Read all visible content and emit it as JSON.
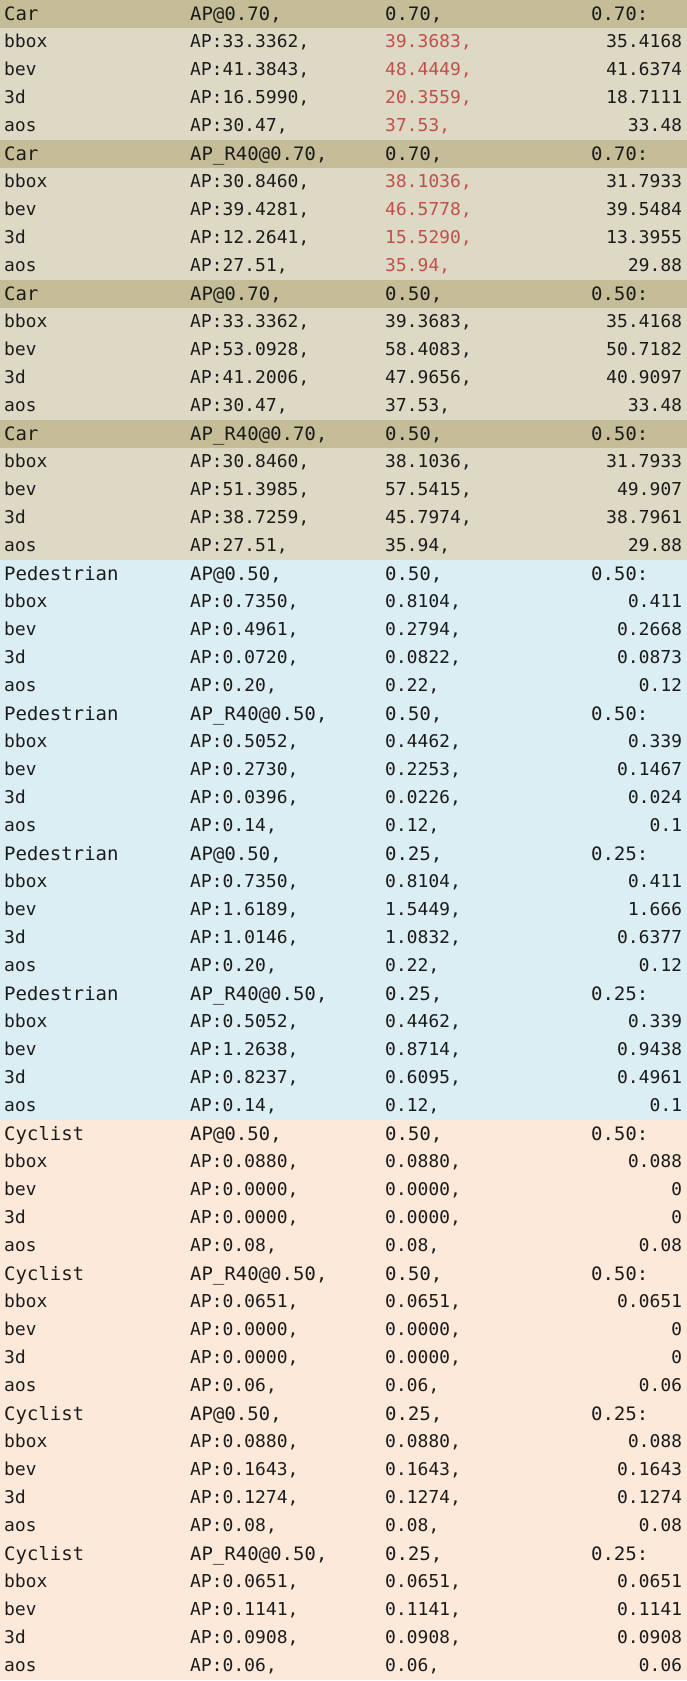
{
  "blocks": [
    {
      "group": "car",
      "header": [
        "Car",
        "AP@0.70,",
        "0.70,",
        "0.70:"
      ],
      "highlight": true,
      "rows": [
        [
          "bbox",
          "AP:33.3362,",
          "39.3683,",
          "35.4168"
        ],
        [
          "bev",
          "AP:41.3843,",
          "48.4449,",
          "41.6374"
        ],
        [
          "3d",
          "AP:16.5990,",
          "20.3559,",
          "18.7111"
        ],
        [
          "aos",
          "AP:30.47,",
          "37.53,",
          "33.48"
        ]
      ]
    },
    {
      "group": "car",
      "header": [
        "Car",
        "AP_R40@0.70,",
        "0.70,",
        "0.70:"
      ],
      "highlight": true,
      "rows": [
        [
          "bbox",
          "AP:30.8460,",
          "38.1036,",
          "31.7933"
        ],
        [
          "bev",
          "AP:39.4281,",
          "46.5778,",
          "39.5484"
        ],
        [
          "3d",
          "AP:12.2641,",
          "15.5290,",
          "13.3955"
        ],
        [
          "aos",
          "AP:27.51,",
          "35.94,",
          "29.88"
        ]
      ]
    },
    {
      "group": "car",
      "header": [
        "Car",
        "AP@0.70,",
        "0.50,",
        "0.50:"
      ],
      "highlight": false,
      "rows": [
        [
          "bbox",
          "AP:33.3362,",
          "39.3683,",
          "35.4168"
        ],
        [
          "bev",
          "AP:53.0928,",
          "58.4083,",
          "50.7182"
        ],
        [
          "3d",
          "AP:41.2006,",
          "47.9656,",
          "40.9097"
        ],
        [
          "aos",
          "AP:30.47,",
          "37.53,",
          "33.48"
        ]
      ]
    },
    {
      "group": "car",
      "header": [
        "Car",
        "AP_R40@0.70,",
        "0.50,",
        "0.50:"
      ],
      "highlight": false,
      "rows": [
        [
          "bbox",
          "AP:30.8460,",
          "38.1036,",
          "31.7933"
        ],
        [
          "bev",
          "AP:51.3985,",
          "57.5415,",
          "49.907"
        ],
        [
          "3d",
          "AP:38.7259,",
          "45.7974,",
          "38.7961"
        ],
        [
          "aos",
          "AP:27.51,",
          "35.94,",
          "29.88"
        ]
      ]
    },
    {
      "group": "ped",
      "header": [
        "Pedestrian",
        "AP@0.50,",
        "0.50,",
        "0.50:"
      ],
      "highlight": false,
      "rows": [
        [
          "bbox",
          "AP:0.7350,",
          "0.8104,",
          "0.411"
        ],
        [
          "bev",
          "AP:0.4961,",
          "0.2794,",
          "0.2668"
        ],
        [
          "3d",
          "AP:0.0720,",
          "0.0822,",
          "0.0873"
        ],
        [
          "aos",
          "AP:0.20,",
          "0.22,",
          "0.12"
        ]
      ]
    },
    {
      "group": "ped",
      "header": [
        "Pedestrian",
        "AP_R40@0.50,",
        "0.50,",
        "0.50:"
      ],
      "highlight": false,
      "rows": [
        [
          "bbox",
          "AP:0.5052,",
          "0.4462,",
          "0.339"
        ],
        [
          "bev",
          "AP:0.2730,",
          "0.2253,",
          "0.1467"
        ],
        [
          "3d",
          "AP:0.0396,",
          "0.0226,",
          "0.024"
        ],
        [
          "aos",
          "AP:0.14,",
          "0.12,",
          "0.1"
        ]
      ]
    },
    {
      "group": "ped",
      "header": [
        "Pedestrian",
        "AP@0.50,",
        "0.25,",
        "0.25:"
      ],
      "highlight": false,
      "rows": [
        [
          "bbox",
          "AP:0.7350,",
          "0.8104,",
          "0.411"
        ],
        [
          "bev",
          "AP:1.6189,",
          "1.5449,",
          "1.666"
        ],
        [
          "3d",
          "AP:1.0146,",
          "1.0832,",
          "0.6377"
        ],
        [
          "aos",
          "AP:0.20,",
          "0.22,",
          "0.12"
        ]
      ]
    },
    {
      "group": "ped",
      "header": [
        "Pedestrian",
        "AP_R40@0.50,",
        "0.25,",
        "0.25:"
      ],
      "highlight": false,
      "rows": [
        [
          "bbox",
          "AP:0.5052,",
          "0.4462,",
          "0.339"
        ],
        [
          "bev",
          "AP:1.2638,",
          "0.8714,",
          "0.9438"
        ],
        [
          "3d",
          "AP:0.8237,",
          "0.6095,",
          "0.4961"
        ],
        [
          "aos",
          "AP:0.14,",
          "0.12,",
          "0.1"
        ]
      ]
    },
    {
      "group": "cyc",
      "header": [
        "Cyclist",
        "AP@0.50,",
        "0.50,",
        "0.50:"
      ],
      "highlight": false,
      "rows": [
        [
          "bbox",
          "AP:0.0880,",
          "0.0880,",
          "0.088"
        ],
        [
          "bev",
          "AP:0.0000,",
          "0.0000,",
          "0"
        ],
        [
          "3d",
          "AP:0.0000,",
          "0.0000,",
          "0"
        ],
        [
          "aos",
          "AP:0.08,",
          "0.08,",
          "0.08"
        ]
      ]
    },
    {
      "group": "cyc",
      "header": [
        "Cyclist",
        "AP_R40@0.50,",
        "0.50,",
        "0.50:"
      ],
      "highlight": false,
      "rows": [
        [
          "bbox",
          "AP:0.0651,",
          "0.0651,",
          "0.0651"
        ],
        [
          "bev",
          "AP:0.0000,",
          "0.0000,",
          "0"
        ],
        [
          "3d",
          "AP:0.0000,",
          "0.0000,",
          "0"
        ],
        [
          "aos",
          "AP:0.06,",
          "0.06,",
          "0.06"
        ]
      ]
    },
    {
      "group": "cyc",
      "header": [
        "Cyclist",
        "AP@0.50,",
        "0.25,",
        "0.25:"
      ],
      "highlight": false,
      "rows": [
        [
          "bbox",
          "AP:0.0880,",
          "0.0880,",
          "0.088"
        ],
        [
          "bev",
          "AP:0.1643,",
          "0.1643,",
          "0.1643"
        ],
        [
          "3d",
          "AP:0.1274,",
          "0.1274,",
          "0.1274"
        ],
        [
          "aos",
          "AP:0.08,",
          "0.08,",
          "0.08"
        ]
      ]
    },
    {
      "group": "cyc",
      "header": [
        "Cyclist",
        "AP_R40@0.50,",
        "0.25,",
        "0.25:"
      ],
      "highlight": false,
      "rows": [
        [
          "bbox",
          "AP:0.0651,",
          "0.0651,",
          "0.0651"
        ],
        [
          "bev",
          "AP:0.1141,",
          "0.1141,",
          "0.1141"
        ],
        [
          "3d",
          "AP:0.0908,",
          "0.0908,",
          "0.0908"
        ],
        [
          "aos",
          "AP:0.06,",
          "0.06,",
          "0.06"
        ]
      ]
    }
  ],
  "colors": {
    "car_bg": "#ddd9c4",
    "car_header_bg": "#c4bd97",
    "pedestrian_bg": "#daeef3",
    "cyclist_bg": "#fde9d9",
    "highlight_text": "#c0504d",
    "text": "#1a1a1a"
  }
}
